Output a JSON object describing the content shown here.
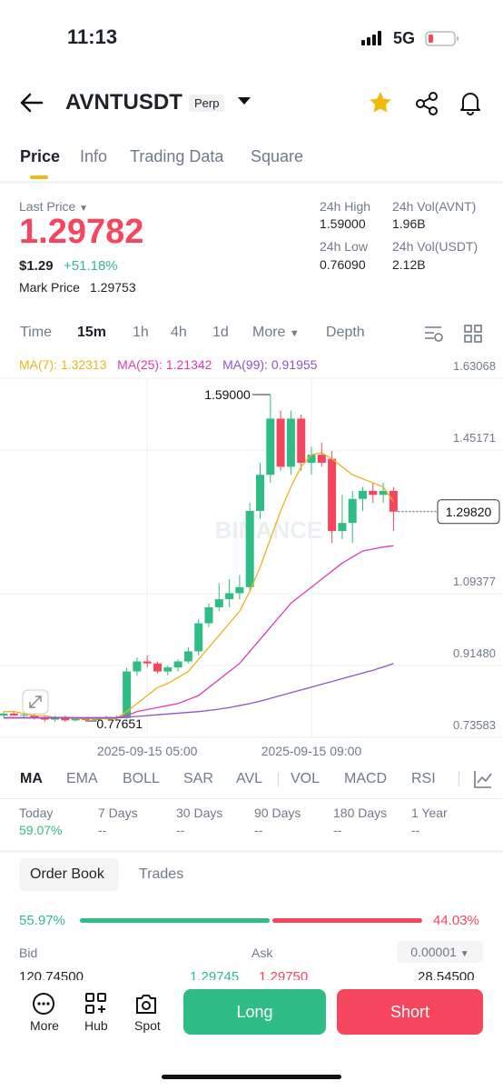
{
  "status_bar": {
    "time": "11:13",
    "network": "5G"
  },
  "header": {
    "symbol": "AVNTUSDT",
    "badge": "Perp"
  },
  "tabs": [
    "Price",
    "Info",
    "Trading Data",
    "Square"
  ],
  "price": {
    "last_price_label": "Last Price",
    "last_price": "1.29782",
    "usd": "$1.29",
    "change": "+51.18%",
    "mark_price_label": "Mark Price",
    "mark_price": "1.29753"
  },
  "stats": [
    {
      "label": "24h High",
      "value": "1.59000"
    },
    {
      "label": "24h Vol(AVNT)",
      "value": "1.96B"
    },
    {
      "label": "24h Low",
      "value": "0.76090"
    },
    {
      "label": "24h Vol(USDT)",
      "value": "2.12B"
    }
  ],
  "intervals": [
    "Time",
    "15m",
    "1h",
    "4h",
    "1d",
    "More",
    "Depth"
  ],
  "chart": {
    "type": "candlestick",
    "watermark": "BINANCE",
    "ma_lines": [
      {
        "label": "MA(7): 1.32313",
        "color": "#e8b51c",
        "values": [
          0.8,
          0.8,
          0.795,
          0.79,
          0.79,
          0.785,
          0.785,
          0.783,
          0.782,
          0.782,
          0.782,
          0.783,
          0.8,
          0.82,
          0.84,
          0.86,
          0.87,
          0.885,
          0.9,
          0.93,
          0.96,
          0.99,
          1.02,
          1.05,
          1.1,
          1.16,
          1.23,
          1.3,
          1.36,
          1.41,
          1.44,
          1.445,
          1.43,
          1.41,
          1.39,
          1.38,
          1.37,
          1.36,
          1.32313
        ]
      },
      {
        "label": "MA(25): 1.21342",
        "color": "#d63eb5",
        "values": [
          0.785,
          0.785,
          0.785,
          0.785,
          0.785,
          0.785,
          0.785,
          0.785,
          0.785,
          0.785,
          0.785,
          0.785,
          0.79,
          0.8,
          0.805,
          0.81,
          0.815,
          0.82,
          0.83,
          0.84,
          0.86,
          0.88,
          0.9,
          0.92,
          0.95,
          0.98,
          1.01,
          1.04,
          1.07,
          1.09,
          1.11,
          1.13,
          1.15,
          1.17,
          1.185,
          1.2,
          1.205,
          1.21,
          1.21342
        ]
      },
      {
        "label": "MA(99): 0.91955",
        "color": "#8e55c4",
        "values": [
          0.784,
          0.784,
          0.784,
          0.784,
          0.784,
          0.784,
          0.784,
          0.784,
          0.784,
          0.784,
          0.784,
          0.784,
          0.786,
          0.788,
          0.79,
          0.792,
          0.794,
          0.796,
          0.798,
          0.8,
          0.803,
          0.806,
          0.81,
          0.815,
          0.82,
          0.826,
          0.833,
          0.84,
          0.847,
          0.854,
          0.861,
          0.868,
          0.875,
          0.882,
          0.889,
          0.896,
          0.903,
          0.911,
          0.91955
        ]
      }
    ],
    "categories": [
      null,
      null,
      null,
      null,
      null,
      null,
      null,
      null,
      null,
      null,
      null,
      null,
      null,
      null,
      "2025-09-15 05:00",
      null,
      null,
      null,
      null,
      null,
      null,
      null,
      null,
      null,
      null,
      null,
      null,
      null,
      null,
      null,
      "2025-09-15 09:00",
      null,
      null,
      null,
      null,
      null,
      null,
      null,
      null
    ],
    "open": [
      0.79,
      0.795,
      0.79,
      0.79,
      0.785,
      0.78,
      0.787,
      0.778,
      0.782,
      0.779,
      0.783,
      0.786,
      0.784,
      0.9,
      0.925,
      0.92,
      0.9,
      0.91,
      0.925,
      0.95,
      1.02,
      1.06,
      1.08,
      1.095,
      1.11,
      1.3,
      1.39,
      1.53,
      1.41,
      1.53,
      1.42,
      1.44,
      1.43,
      1.25,
      1.27,
      1.33,
      1.35,
      1.34,
      1.35
    ],
    "high": [
      0.8,
      0.8,
      0.795,
      0.795,
      0.79,
      0.79,
      0.79,
      0.785,
      0.786,
      0.785,
      0.79,
      0.79,
      0.91,
      0.935,
      0.94,
      0.925,
      0.915,
      0.93,
      0.96,
      1.03,
      1.07,
      1.12,
      1.13,
      1.14,
      1.32,
      1.42,
      1.59,
      1.55,
      1.55,
      1.54,
      1.46,
      1.47,
      1.45,
      1.34,
      1.35,
      1.36,
      1.37,
      1.37,
      1.36
    ],
    "low": [
      0.785,
      0.79,
      0.785,
      0.78,
      0.775,
      0.775,
      0.775,
      0.776,
      0.77651,
      0.777,
      0.78,
      0.78,
      0.78,
      0.89,
      0.91,
      0.895,
      0.89,
      0.9,
      0.92,
      0.94,
      1.01,
      1.05,
      1.06,
      1.08,
      1.1,
      1.28,
      1.37,
      1.4,
      1.39,
      1.4,
      1.39,
      1.41,
      1.22,
      1.23,
      1.22,
      1.3,
      1.32,
      1.32,
      1.25
    ],
    "close": [
      0.795,
      0.79,
      0.792,
      0.785,
      0.78,
      0.787,
      0.778,
      0.782,
      0.779,
      0.783,
      0.786,
      0.784,
      0.9,
      0.925,
      0.92,
      0.9,
      0.91,
      0.925,
      0.95,
      1.02,
      1.06,
      1.08,
      1.095,
      1.11,
      1.3,
      1.39,
      1.53,
      1.41,
      1.53,
      1.42,
      1.44,
      1.42,
      1.25,
      1.27,
      1.33,
      1.35,
      1.34,
      1.35,
      1.2982
    ],
    "up_color": "#2ebd85",
    "down_color": "#f6465d",
    "ylim": [
      0.73583,
      1.63068
    ],
    "yticks": [
      0.73583,
      {
        "value": 0.9148,
        "label": "0.91480"
      },
      1.09377,
      1.45171,
      1.63068
    ],
    "grid": true,
    "annotations": [
      {
        "value": 1.59,
        "label": "1.59000"
      },
      {
        "value": 0.77651,
        "label": "0.77651"
      }
    ],
    "last_price_marker": {
      "value": 1.2982,
      "label": "1.29820"
    }
  },
  "indicators": [
    "MA",
    "EMA",
    "BOLL",
    "SAR",
    "AVL",
    "VOL",
    "MACD",
    "RSI"
  ],
  "performance": [
    {
      "label": "Today",
      "value": "59.07%"
    },
    {
      "label": "7 Days",
      "value": "--"
    },
    {
      "label": "30 Days",
      "value": "--"
    },
    {
      "label": "90 Days",
      "value": "--"
    },
    {
      "label": "180 Days",
      "value": "--"
    },
    {
      "label": "1 Year",
      "value": "--"
    }
  ],
  "order_book": {
    "tabs": [
      "Order Book",
      "Trades"
    ],
    "bid_ratio": {
      "value": 55.97,
      "label": "55.97%"
    },
    "ask_ratio": {
      "value": 44.03,
      "label": "44.03%"
    },
    "bid_label": "Bid",
    "ask_label": "Ask",
    "tick_size": "0.00001",
    "row": [
      "120.74500",
      "1.29745",
      "1.29750",
      "28.54500"
    ]
  },
  "bottom_nav": [
    "More",
    "Hub",
    "Spot"
  ],
  "actions": {
    "long": "Long",
    "short": "Short"
  }
}
